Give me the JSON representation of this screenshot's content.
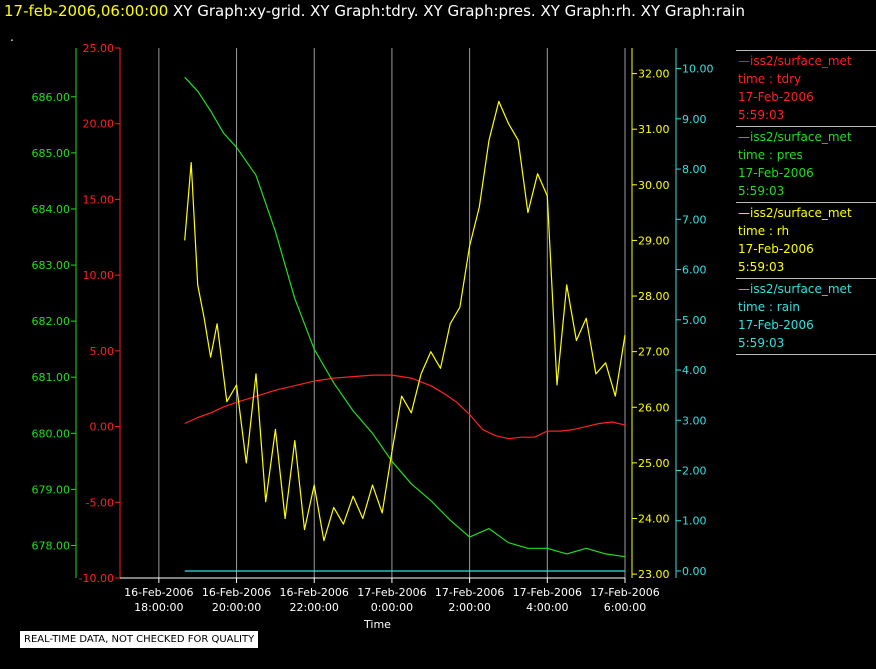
{
  "header": {
    "timestamp": "17-feb-2006,06:00:00",
    "title_rest": " XY Graph:xy-grid.  XY Graph:tdry.  XY Graph:pres.  XY Graph:rh.  XY Graph:rain",
    "dot": "."
  },
  "disclaimer": "REAL-TIME DATA, NOT CHECKED FOR QUALITY",
  "legend": [
    {
      "name": "iss2/surface_met",
      "var": "time : tdry",
      "date": "17-Feb-2006",
      "time": "5:59:03",
      "color": "#ff2020"
    },
    {
      "name": "iss2/surface_met",
      "var": "time : pres",
      "date": "17-Feb-2006",
      "time": "5:59:03",
      "color": "#22dd22"
    },
    {
      "name": "iss2/surface_met",
      "var": "time : rh",
      "date": "17-Feb-2006",
      "time": "5:59:03",
      "color": "#ffff00"
    },
    {
      "name": "iss2/surface_met",
      "var": "time : rain",
      "date": "17-Feb-2006",
      "time": "5:59:03",
      "color": "#33e0e0"
    }
  ],
  "chart_data": {
    "type": "line",
    "xlabel": "Time",
    "x_range": [
      "2006-02-16T17:00:00",
      "2006-02-17T06:00:00"
    ],
    "x_ticks": [
      {
        "date": "16-Feb-2006",
        "time": "18:00:00"
      },
      {
        "date": "16-Feb-2006",
        "time": "20:00:00"
      },
      {
        "date": "16-Feb-2006",
        "time": "22:00:00"
      },
      {
        "date": "17-Feb-2006",
        "time": "0:00:00"
      },
      {
        "date": "17-Feb-2006",
        "time": "2:00:00"
      },
      {
        "date": "17-Feb-2006",
        "time": "4:00:00"
      },
      {
        "date": "17-Feb-2006",
        "time": "6:00:00"
      }
    ],
    "grid": "vertical",
    "axes": {
      "tdry": {
        "color": "#ff2020",
        "side": "left-inner",
        "range": [
          -10,
          25
        ],
        "ticks": [
          "-10.00",
          "-5.00",
          "0.00",
          "5.00",
          "10.00",
          "15.00",
          "20.00",
          "25.00"
        ]
      },
      "pres": {
        "color": "#22dd22",
        "side": "left-outer",
        "range": [
          677.42,
          686.87
        ],
        "ticks": [
          "678.00",
          "679.00",
          "680.00",
          "681.00",
          "682.00",
          "683.00",
          "684.00",
          "685.00",
          "686.00"
        ]
      },
      "rh": {
        "color": "#ffff00",
        "side": "right-inner",
        "range": [
          22.93,
          32.46
        ],
        "ticks": [
          "23.00",
          "24.00",
          "25.00",
          "26.00",
          "27.00",
          "28.00",
          "29.00",
          "30.00",
          "31.00",
          "32.00"
        ]
      },
      "rain": {
        "color": "#33e0e0",
        "side": "right-outer",
        "range": [
          -0.14,
          10.41
        ],
        "ticks": [
          "0.00",
          "1.00",
          "2.00",
          "3.00",
          "4.00",
          "5.00",
          "6.00",
          "7.00",
          "8.00",
          "9.00",
          "10.00"
        ]
      }
    },
    "series": [
      {
        "key": "tdry",
        "color": "#ff2020",
        "x": [
          "2006-02-16T18:40",
          "2006-02-16T19:00",
          "2006-02-16T19:20",
          "2006-02-16T19:40",
          "2006-02-16T20:00",
          "2006-02-16T20:30",
          "2006-02-16T21:00",
          "2006-02-16T21:30",
          "2006-02-16T22:00",
          "2006-02-16T22:30",
          "2006-02-16T23:00",
          "2006-02-16T23:30",
          "2006-02-17T00:00",
          "2006-02-17T00:30",
          "2006-02-17T01:00",
          "2006-02-17T01:20",
          "2006-02-17T01:40",
          "2006-02-17T02:00",
          "2006-02-17T02:20",
          "2006-02-17T02:40",
          "2006-02-17T03:00",
          "2006-02-17T03:20",
          "2006-02-17T03:40",
          "2006-02-17T04:00",
          "2006-02-17T04:20",
          "2006-02-17T04:40",
          "2006-02-17T05:00",
          "2006-02-17T05:20",
          "2006-02-17T05:40",
          "2006-02-17T06:00"
        ],
        "values": [
          0.2,
          0.6,
          0.9,
          1.3,
          1.6,
          2.0,
          2.4,
          2.7,
          3.0,
          3.2,
          3.3,
          3.4,
          3.4,
          3.2,
          2.7,
          2.2,
          1.6,
          0.8,
          -0.2,
          -0.6,
          -0.8,
          -0.7,
          -0.7,
          -0.3,
          -0.3,
          -0.2,
          0.0,
          0.2,
          0.3,
          0.1
        ]
      },
      {
        "key": "pres",
        "color": "#22dd22",
        "x": [
          "2006-02-16T18:40",
          "2006-02-16T19:00",
          "2006-02-16T19:20",
          "2006-02-16T19:40",
          "2006-02-16T20:00",
          "2006-02-16T20:30",
          "2006-02-16T21:00",
          "2006-02-16T21:30",
          "2006-02-16T22:00",
          "2006-02-16T22:30",
          "2006-02-16T23:00",
          "2006-02-16T23:30",
          "2006-02-17T00:00",
          "2006-02-17T00:30",
          "2006-02-17T01:00",
          "2006-02-17T01:30",
          "2006-02-17T02:00",
          "2006-02-17T02:30",
          "2006-02-17T03:00",
          "2006-02-17T03:30",
          "2006-02-17T04:00",
          "2006-02-17T04:30",
          "2006-02-17T05:00",
          "2006-02-17T05:30",
          "2006-02-17T06:00"
        ],
        "values": [
          686.35,
          686.1,
          685.75,
          685.35,
          685.1,
          684.6,
          683.6,
          682.4,
          681.5,
          680.9,
          680.4,
          680.0,
          679.5,
          679.1,
          678.8,
          678.45,
          678.15,
          678.3,
          678.05,
          677.95,
          677.95,
          677.85,
          677.95,
          677.85,
          677.8
        ]
      },
      {
        "key": "rh",
        "color": "#ffff00",
        "x": [
          "2006-02-16T18:40",
          "2006-02-16T18:50",
          "2006-02-16T19:00",
          "2006-02-16T19:10",
          "2006-02-16T19:20",
          "2006-02-16T19:30",
          "2006-02-16T19:45",
          "2006-02-16T20:00",
          "2006-02-16T20:15",
          "2006-02-16T20:30",
          "2006-02-16T20:45",
          "2006-02-16T21:00",
          "2006-02-16T21:15",
          "2006-02-16T21:30",
          "2006-02-16T21:45",
          "2006-02-16T22:00",
          "2006-02-16T22:15",
          "2006-02-16T22:30",
          "2006-02-16T22:45",
          "2006-02-16T23:00",
          "2006-02-16T23:15",
          "2006-02-16T23:30",
          "2006-02-16T23:45",
          "2006-02-17T00:00",
          "2006-02-17T00:15",
          "2006-02-17T00:30",
          "2006-02-17T00:45",
          "2006-02-17T01:00",
          "2006-02-17T01:15",
          "2006-02-17T01:30",
          "2006-02-17T01:45",
          "2006-02-17T02:00",
          "2006-02-17T02:15",
          "2006-02-17T02:30",
          "2006-02-17T02:45",
          "2006-02-17T03:00",
          "2006-02-17T03:15",
          "2006-02-17T03:30",
          "2006-02-17T03:45",
          "2006-02-17T04:00",
          "2006-02-17T04:15",
          "2006-02-17T04:30",
          "2006-02-17T04:45",
          "2006-02-17T05:00",
          "2006-02-17T05:15",
          "2006-02-17T05:30",
          "2006-02-17T05:45",
          "2006-02-17T06:00"
        ],
        "values": [
          29.0,
          30.4,
          28.2,
          27.6,
          26.9,
          27.5,
          26.1,
          26.4,
          25.0,
          26.6,
          24.3,
          25.6,
          24.0,
          25.4,
          23.8,
          24.6,
          23.6,
          24.2,
          23.9,
          24.4,
          24.0,
          24.6,
          24.1,
          25.2,
          26.2,
          25.9,
          26.6,
          27.0,
          26.7,
          27.5,
          27.8,
          28.9,
          29.6,
          30.8,
          31.5,
          31.1,
          30.8,
          29.5,
          30.2,
          29.8,
          26.4,
          28.2,
          27.2,
          27.6,
          26.6,
          26.8,
          26.2,
          27.3
        ]
      },
      {
        "key": "rain",
        "color": "#33e0e0",
        "x": [
          "2006-02-16T18:40",
          "2006-02-17T06:00"
        ],
        "values": [
          0.0,
          0.0
        ]
      }
    ]
  }
}
